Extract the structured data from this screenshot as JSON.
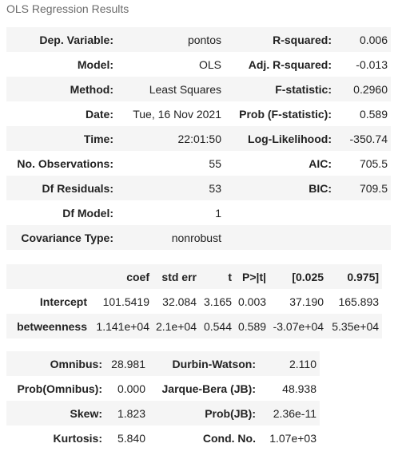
{
  "caption": "OLS Regression Results",
  "summary": [
    {
      "l1": "Dep. Variable:",
      "v1": "pontos",
      "l2": "R-squared:",
      "v2": "0.006"
    },
    {
      "l1": "Model:",
      "v1": "OLS",
      "l2": "Adj. R-squared:",
      "v2": "-0.013"
    },
    {
      "l1": "Method:",
      "v1": "Least Squares",
      "l2": "F-statistic:",
      "v2": "0.2960"
    },
    {
      "l1": "Date:",
      "v1": "Tue, 16 Nov 2021",
      "l2": "Prob (F-statistic):",
      "v2": "0.589"
    },
    {
      "l1": "Time:",
      "v1": "22:01:50",
      "l2": "Log-Likelihood:",
      "v2": "-350.74"
    },
    {
      "l1": "No. Observations:",
      "v1": "55",
      "l2": "AIC:",
      "v2": "705.5"
    },
    {
      "l1": "Df Residuals:",
      "v1": "53",
      "l2": "BIC:",
      "v2": "709.5"
    },
    {
      "l1": "Df Model:",
      "v1": "1",
      "l2": "",
      "v2": ""
    },
    {
      "l1": "Covariance Type:",
      "v1": "nonrobust",
      "l2": "",
      "v2": ""
    }
  ],
  "coef_table": {
    "headers": [
      "",
      "coef",
      "std err",
      "t",
      "P>|t|",
      "[0.025",
      "0.975]"
    ],
    "rows": [
      [
        "Intercept",
        "101.5419",
        "32.084",
        "3.165",
        "0.003",
        "37.190",
        "165.893"
      ],
      [
        "betweenness",
        "1.141e+04",
        "2.1e+04",
        "0.544",
        "0.589",
        "-3.07e+04",
        "5.35e+04"
      ]
    ]
  },
  "diagnostics": [
    {
      "l1": "Omnibus:",
      "v1": "28.981",
      "l2": "Durbin-Watson:",
      "v2": "2.110"
    },
    {
      "l1": "Prob(Omnibus):",
      "v1": "0.000",
      "l2": "Jarque-Bera (JB):",
      "v2": "48.938"
    },
    {
      "l1": "Skew:",
      "v1": "1.823",
      "l2": "Prob(JB):",
      "v2": "2.36e-11"
    },
    {
      "l1": "Kurtosis:",
      "v1": "5.840",
      "l2": "Cond. No.",
      "v2": "1.07e+03"
    }
  ]
}
